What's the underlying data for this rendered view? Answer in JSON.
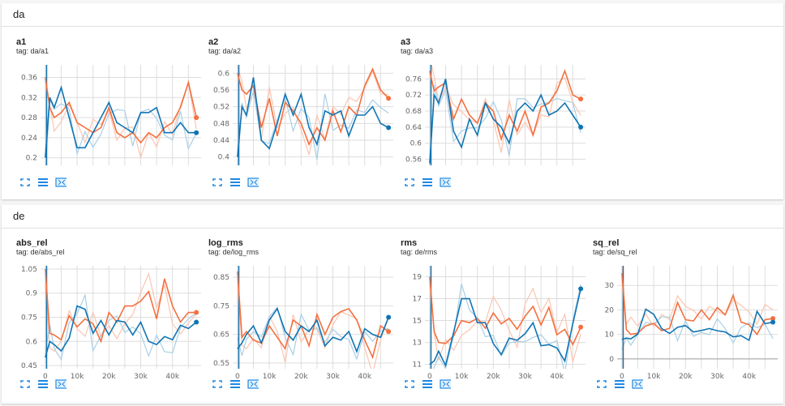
{
  "sections": [
    {
      "title": "da",
      "cards": [
        {
          "title": "a1",
          "tag": "tag: da/a1"
        },
        {
          "title": "a2",
          "tag": "tag: da/a2"
        },
        {
          "title": "a3",
          "tag": "tag: da/a3"
        }
      ]
    },
    {
      "title": "de",
      "cards": [
        {
          "title": "abs_rel",
          "tag": "tag: de/abs_rel"
        },
        {
          "title": "log_rms",
          "tag": "tag: de/log_rms"
        },
        {
          "title": "rms",
          "tag": "tag: de/rms"
        },
        {
          "title": "sq_rel",
          "tag": "tag: de/sq_rel"
        }
      ]
    }
  ],
  "buttons": {
    "fit": "fit-domain-icon",
    "log": "log-scale-icon",
    "download": "download-icon"
  },
  "colors": {
    "orange": "#f4703f",
    "blue": "#0f74b4",
    "orange_raw": "#fbc5b1",
    "blue_raw": "#a9cfe6",
    "grid": "#dddddd"
  },
  "chart_data": [
    {
      "type": "line",
      "title": "a1",
      "x": [
        0,
        1400,
        2800,
        5000,
        7500,
        10000,
        12500,
        15000,
        17500,
        20000,
        22500,
        25000,
        27500,
        30000,
        32500,
        35000,
        37500,
        40000,
        42500,
        45000,
        47500
      ],
      "xlim": [
        -1500,
        49000
      ],
      "ylim": [
        0.185,
        0.385
      ],
      "yticks": [
        0.2,
        0.24,
        0.28,
        0.32,
        0.36
      ],
      "xticks": [],
      "series": [
        {
          "name": "orange",
          "values": [
            0.36,
            0.3,
            0.28,
            0.29,
            0.31,
            0.27,
            0.26,
            0.25,
            0.26,
            0.3,
            0.25,
            0.24,
            0.25,
            0.23,
            0.25,
            0.24,
            0.26,
            0.27,
            0.3,
            0.35,
            0.28
          ]
        },
        {
          "name": "blue",
          "values": [
            0.2,
            0.32,
            0.3,
            0.34,
            0.28,
            0.22,
            0.22,
            0.25,
            0.28,
            0.31,
            0.27,
            0.26,
            0.25,
            0.29,
            0.29,
            0.3,
            0.25,
            0.25,
            0.27,
            0.25,
            0.25
          ]
        }
      ]
    },
    {
      "type": "line",
      "title": "a2",
      "x": [
        0,
        1400,
        2800,
        5000,
        7500,
        10000,
        12500,
        15000,
        17500,
        20000,
        22500,
        25000,
        27500,
        30000,
        32500,
        35000,
        37500,
        40000,
        42500,
        45000,
        47500
      ],
      "xlim": [
        -1500,
        49000
      ],
      "ylim": [
        0.38,
        0.62
      ],
      "yticks": [
        0.4,
        0.44,
        0.48,
        0.52,
        0.56,
        0.6
      ],
      "xticks": [],
      "series": [
        {
          "name": "orange",
          "values": [
            0.6,
            0.56,
            0.55,
            0.57,
            0.47,
            0.54,
            0.45,
            0.53,
            0.51,
            0.48,
            0.43,
            0.47,
            0.44,
            0.51,
            0.46,
            0.52,
            0.5,
            0.57,
            0.61,
            0.56,
            0.54
          ]
        },
        {
          "name": "blue",
          "values": [
            0.4,
            0.52,
            0.5,
            0.59,
            0.44,
            0.42,
            0.48,
            0.55,
            0.5,
            0.55,
            0.47,
            0.43,
            0.51,
            0.5,
            0.51,
            0.45,
            0.5,
            0.5,
            0.52,
            0.48,
            0.47
          ]
        }
      ]
    },
    {
      "type": "line",
      "title": "a3",
      "x": [
        0,
        1400,
        2800,
        5000,
        7500,
        10000,
        12500,
        15000,
        17500,
        20000,
        22500,
        25000,
        27500,
        30000,
        32500,
        35000,
        37500,
        40000,
        42500,
        45000,
        47500
      ],
      "xlim": [
        -1500,
        49000
      ],
      "ylim": [
        0.545,
        0.795
      ],
      "yticks": [
        0.56,
        0.6,
        0.64,
        0.68,
        0.72,
        0.76
      ],
      "xticks": [],
      "series": [
        {
          "name": "orange",
          "values": [
            0.78,
            0.73,
            0.74,
            0.75,
            0.66,
            0.71,
            0.67,
            0.65,
            0.7,
            0.68,
            0.61,
            0.67,
            0.63,
            0.68,
            0.62,
            0.69,
            0.7,
            0.73,
            0.78,
            0.72,
            0.71
          ]
        },
        {
          "name": "blue",
          "values": [
            0.55,
            0.72,
            0.7,
            0.76,
            0.63,
            0.59,
            0.66,
            0.62,
            0.7,
            0.66,
            0.64,
            0.6,
            0.68,
            0.7,
            0.68,
            0.72,
            0.67,
            0.68,
            0.7,
            0.67,
            0.64
          ]
        }
      ]
    },
    {
      "type": "line",
      "title": "abs_rel",
      "x": [
        0,
        1400,
        2800,
        5000,
        7500,
        10000,
        12500,
        15000,
        17500,
        20000,
        22500,
        25000,
        27500,
        30000,
        32500,
        35000,
        37500,
        40000,
        42500,
        45000,
        47500
      ],
      "xlim": [
        -1500,
        49000
      ],
      "ylim": [
        0.43,
        1.07
      ],
      "yticks": [
        0.45,
        0.6,
        0.75,
        0.9,
        1.05
      ],
      "xticks": [
        0,
        10000,
        20000,
        30000,
        40000
      ],
      "xtick_labels": [
        "0",
        "10k",
        "20k",
        "30k",
        "40k"
      ],
      "series": [
        {
          "name": "orange",
          "values": [
            1.05,
            0.65,
            0.64,
            0.61,
            0.76,
            0.69,
            0.74,
            0.71,
            0.6,
            0.78,
            0.72,
            0.82,
            0.82,
            0.85,
            0.91,
            0.74,
            0.99,
            0.82,
            0.72,
            0.78,
            0.78
          ]
        },
        {
          "name": "blue",
          "values": [
            0.5,
            0.6,
            0.58,
            0.54,
            0.62,
            0.82,
            0.8,
            0.65,
            0.73,
            0.64,
            0.73,
            0.72,
            0.64,
            0.72,
            0.6,
            0.58,
            0.63,
            0.61,
            0.7,
            0.68,
            0.72
          ]
        }
      ]
    },
    {
      "type": "line",
      "title": "log_rms",
      "x": [
        0,
        1400,
        2800,
        5000,
        7500,
        10000,
        12500,
        15000,
        17500,
        20000,
        22500,
        25000,
        27500,
        30000,
        32500,
        35000,
        37500,
        40000,
        42500,
        45000,
        47500
      ],
      "xlim": [
        -1500,
        49000
      ],
      "ylim": [
        0.53,
        0.89
      ],
      "yticks": [
        0.55,
        0.65,
        0.75,
        0.85
      ],
      "xticks": [
        0,
        10000,
        20000,
        30000,
        40000
      ],
      "xtick_labels": [
        "0",
        "10k",
        "20k",
        "30k",
        "40k"
      ],
      "series": [
        {
          "name": "orange",
          "values": [
            0.87,
            0.64,
            0.66,
            0.63,
            0.62,
            0.68,
            0.64,
            0.6,
            0.7,
            0.68,
            0.61,
            0.72,
            0.65,
            0.71,
            0.73,
            0.74,
            0.7,
            0.63,
            0.57,
            0.68,
            0.66
          ]
        },
        {
          "name": "blue",
          "values": [
            0.6,
            0.62,
            0.65,
            0.68,
            0.62,
            0.7,
            0.74,
            0.66,
            0.63,
            0.68,
            0.66,
            0.7,
            0.61,
            0.64,
            0.63,
            0.66,
            0.59,
            0.67,
            0.65,
            0.64,
            0.71
          ]
        }
      ]
    },
    {
      "type": "line",
      "title": "rms",
      "x": [
        0,
        1400,
        2800,
        5000,
        7500,
        10000,
        12500,
        15000,
        17500,
        20000,
        22500,
        25000,
        27500,
        30000,
        32500,
        35000,
        37500,
        40000,
        42500,
        45000,
        47500
      ],
      "xlim": [
        -1500,
        49000
      ],
      "ylim": [
        10.6,
        20.0
      ],
      "yticks": [
        11,
        13,
        15,
        17,
        19
      ],
      "xticks": [
        0,
        10000,
        20000,
        30000,
        40000
      ],
      "xtick_labels": [
        "0",
        "10k",
        "20k",
        "30k",
        "40k"
      ],
      "series": [
        {
          "name": "orange",
          "values": [
            19,
            14,
            13,
            12.9,
            13.6,
            15,
            14.8,
            15.2,
            14.3,
            15.7,
            14.7,
            15.2,
            14.2,
            15.4,
            16.3,
            14.6,
            16.2,
            13.7,
            14.2,
            12.8,
            14.4
          ]
        },
        {
          "name": "blue",
          "values": [
            11,
            11.3,
            12.2,
            10.9,
            13.9,
            17,
            17,
            14.8,
            14.8,
            12.9,
            11.9,
            13.4,
            13.2,
            13.8,
            14.8,
            12.7,
            12.8,
            12.5,
            11.3,
            14.7,
            17.9
          ]
        }
      ]
    },
    {
      "type": "line",
      "title": "sq_rel",
      "x": [
        0,
        1400,
        2800,
        5000,
        7500,
        10000,
        12500,
        15000,
        17500,
        20000,
        22500,
        25000,
        27500,
        30000,
        32500,
        35000,
        37500,
        40000,
        42500,
        45000,
        47500
      ],
      "xlim": [
        -1500,
        49000
      ],
      "ylim": [
        -4,
        38
      ],
      "yticks": [
        0,
        10,
        20,
        30
      ],
      "xticks": [
        0,
        10000,
        20000,
        30000,
        40000
      ],
      "xtick_labels": [
        "0",
        "10k",
        "20k",
        "30k",
        "40k"
      ],
      "series": [
        {
          "name": "orange",
          "values": [
            35,
            12,
            10,
            10.5,
            13.5,
            14.5,
            11.5,
            12.5,
            23,
            16,
            15.5,
            20,
            16,
            21,
            18,
            26,
            15,
            14,
            10,
            16,
            16.5
          ]
        },
        {
          "name": "blue",
          "values": [
            8,
            8.5,
            8.2,
            10.2,
            20.3,
            18.2,
            12.4,
            10.4,
            12.9,
            13.6,
            11,
            11.6,
            12.4,
            11.5,
            11,
            9,
            9.5,
            7.6,
            19.4,
            14.4,
            15
          ]
        }
      ]
    }
  ]
}
